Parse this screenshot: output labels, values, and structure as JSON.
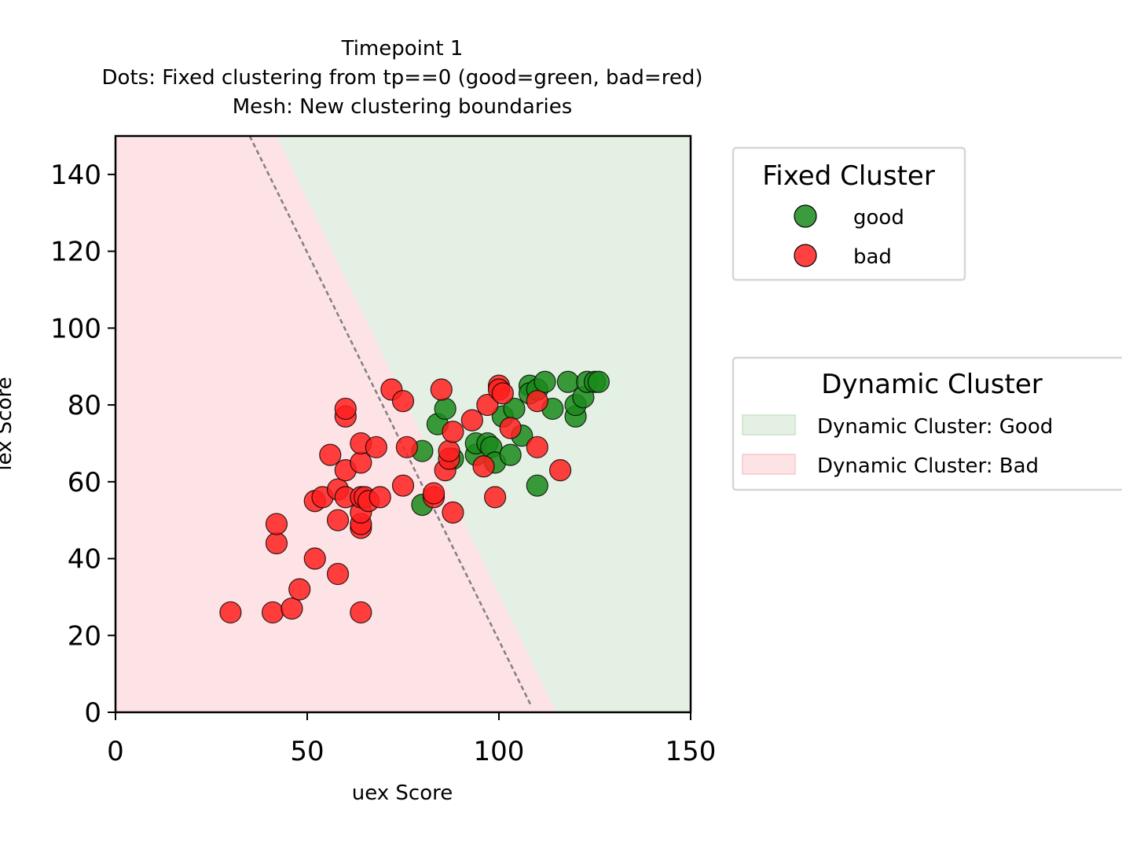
{
  "chart_data": {
    "type": "scatter",
    "title_lines": [
      "Timepoint 1",
      "Dots: Fixed clustering from tp==0 (good=green, bad=red)",
      "Mesh: New clustering boundaries"
    ],
    "xlabel": "uex Score",
    "ylabel": "iex Score",
    "xlim": [
      0,
      150
    ],
    "ylim": [
      0,
      150
    ],
    "xticks": [
      0,
      50,
      100,
      150
    ],
    "yticks": [
      0,
      20,
      40,
      60,
      80,
      100,
      120,
      140
    ],
    "grid": false,
    "mesh_regions": {
      "good_color": "#e4f0e4",
      "bad_color": "#fde3e5",
      "boundary_top": [
        42,
        150
      ],
      "boundary_bottom": [
        115,
        0
      ]
    },
    "boundary_line": {
      "from": [
        35,
        150
      ],
      "to": [
        108.5,
        1.5
      ],
      "color": "#808080",
      "style": "dashed"
    },
    "series": [
      {
        "name": "good",
        "color": "#1a8a1a",
        "points": [
          [
            80,
            68
          ],
          [
            80,
            54
          ],
          [
            84,
            75
          ],
          [
            86,
            79
          ],
          [
            88,
            66
          ],
          [
            94,
            67
          ],
          [
            94,
            70
          ],
          [
            97,
            70
          ],
          [
            98,
            69
          ],
          [
            99,
            65
          ],
          [
            101,
            77
          ],
          [
            103,
            67
          ],
          [
            104,
            79
          ],
          [
            106,
            72
          ],
          [
            108,
            85
          ],
          [
            108,
            83
          ],
          [
            110,
            59
          ],
          [
            110,
            84
          ],
          [
            112,
            86
          ],
          [
            114,
            79
          ],
          [
            118,
            86
          ],
          [
            120,
            77
          ],
          [
            120,
            80
          ],
          [
            122,
            82
          ],
          [
            123,
            86
          ],
          [
            125,
            86
          ],
          [
            126,
            86
          ]
        ]
      },
      {
        "name": "bad",
        "color": "#ff2020",
        "points": [
          [
            30,
            26
          ],
          [
            41,
            26
          ],
          [
            42,
            44
          ],
          [
            42,
            49
          ],
          [
            46,
            27
          ],
          [
            48,
            32
          ],
          [
            52,
            40
          ],
          [
            52,
            55
          ],
          [
            54,
            56
          ],
          [
            56,
            67
          ],
          [
            58,
            36
          ],
          [
            58,
            50
          ],
          [
            58,
            58
          ],
          [
            60,
            56
          ],
          [
            60,
            63
          ],
          [
            60,
            77
          ],
          [
            60,
            79
          ],
          [
            64,
            26
          ],
          [
            64,
            48
          ],
          [
            64,
            49
          ],
          [
            64,
            52
          ],
          [
            64,
            56
          ],
          [
            64,
            65
          ],
          [
            64,
            70
          ],
          [
            65,
            56
          ],
          [
            66,
            55
          ],
          [
            68,
            69
          ],
          [
            69,
            56
          ],
          [
            72,
            84
          ],
          [
            75,
            81
          ],
          [
            75,
            59
          ],
          [
            76,
            69
          ],
          [
            83,
            56
          ],
          [
            83,
            57
          ],
          [
            85,
            84
          ],
          [
            86,
            63
          ],
          [
            87,
            66
          ],
          [
            87,
            68
          ],
          [
            88,
            73
          ],
          [
            88,
            52
          ],
          [
            93,
            76
          ],
          [
            96,
            64
          ],
          [
            97,
            80
          ],
          [
            99,
            56
          ],
          [
            100,
            85
          ],
          [
            100,
            84
          ],
          [
            101,
            83
          ],
          [
            103,
            74
          ],
          [
            110,
            69
          ],
          [
            110,
            81
          ],
          [
            116,
            63
          ]
        ]
      }
    ],
    "legend_fixed": {
      "title": "Fixed Cluster",
      "placement": "outside-right-top",
      "items": [
        {
          "label": "good",
          "color": "#1a8a1a"
        },
        {
          "label": "bad",
          "color": "#ff2020"
        }
      ]
    },
    "legend_dynamic": {
      "title": "Dynamic Cluster",
      "placement": "outside-right-middle",
      "items": [
        {
          "label": "Dynamic Cluster: Good",
          "color": "#e4f0e4"
        },
        {
          "label": "Dynamic Cluster: Bad",
          "color": "#fde3e5"
        }
      ]
    }
  }
}
